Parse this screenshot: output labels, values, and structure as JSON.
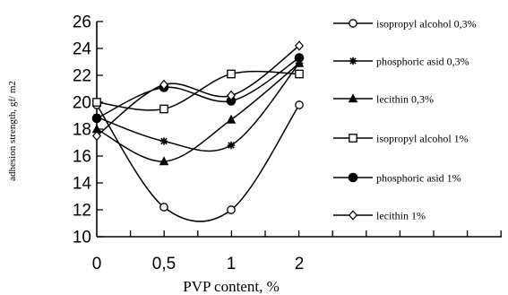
{
  "chart_data": {
    "type": "line",
    "title": "",
    "xlabel": "PVP content, %",
    "ylabel": "adhesion strength,  gf/ m2",
    "categories": [
      "0",
      "0,5",
      "1",
      "2"
    ],
    "ylim": [
      10,
      26
    ],
    "yticks": [
      10,
      12,
      14,
      16,
      18,
      20,
      22,
      24,
      26
    ],
    "smooth": true,
    "grid": false,
    "legend": "right",
    "series": [
      {
        "name": "isopropyl alcohol 0,3%",
        "marker": "circle-open",
        "values": [
          19.8,
          12.2,
          12.0,
          19.8
        ]
      },
      {
        "name": "phosphoric asid 0,3%",
        "marker": "star",
        "values": [
          18.9,
          17.1,
          16.8,
          22.9
        ]
      },
      {
        "name": "lecithin 0,3%",
        "marker": "triangle-filled",
        "values": [
          18.0,
          15.6,
          18.7,
          22.9
        ]
      },
      {
        "name": "isopropyl alcohol 1%",
        "marker": "square-open",
        "values": [
          20.0,
          19.5,
          22.1,
          22.1
        ]
      },
      {
        "name": "phosphoric asid 1%",
        "marker": "circle-filled",
        "values": [
          18.8,
          21.1,
          20.1,
          23.3
        ]
      },
      {
        "name": "lecithin 1%",
        "marker": "diamond-open",
        "values": [
          17.5,
          21.3,
          20.5,
          24.2
        ]
      }
    ]
  }
}
